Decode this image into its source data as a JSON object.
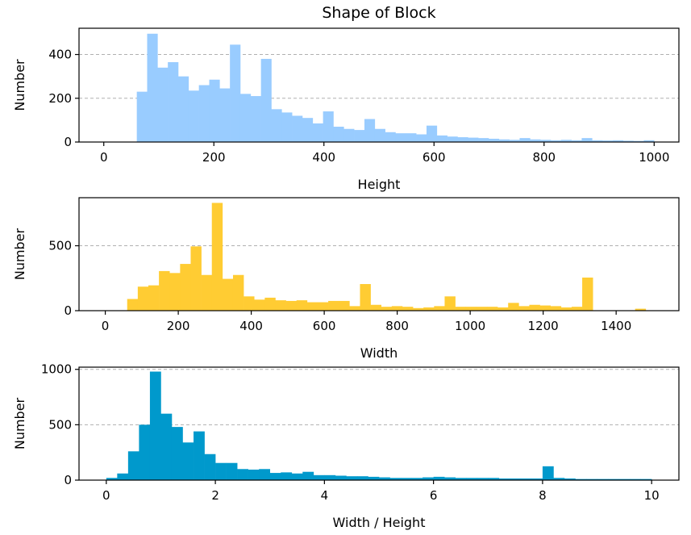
{
  "title": "Shape of Block",
  "chart_data": [
    {
      "type": "bar",
      "xlabel": "Height",
      "ylabel": "Number",
      "color": "#99ccff",
      "xlim": [
        -45,
        1045
      ],
      "ylim": [
        0,
        520
      ],
      "xticks": [
        0,
        200,
        400,
        600,
        800,
        1000
      ],
      "yticks": [
        0,
        200,
        400
      ],
      "grid": "y",
      "bin_edges": [
        60,
        78.8,
        97.6,
        116.4,
        135.2,
        154,
        172.8,
        191.6,
        210.4,
        229.2,
        248,
        266.8,
        285.6,
        304.4,
        323.2,
        342,
        360.8,
        379.6,
        398.4,
        417.2,
        436,
        454.8,
        473.6,
        492.4,
        511.2,
        530,
        548.8,
        567.6,
        586.4,
        605.2,
        624,
        642.8,
        661.6,
        680.4,
        699.2,
        718,
        736.8,
        755.6,
        774.4,
        793.2,
        812,
        830.8,
        849.6,
        868.4,
        887.2,
        906,
        924.8,
        943.6,
        962.4,
        981.2,
        1000
      ],
      "values": [
        230,
        495,
        340,
        365,
        300,
        235,
        260,
        285,
        245,
        445,
        220,
        210,
        380,
        150,
        135,
        120,
        110,
        85,
        140,
        70,
        60,
        55,
        105,
        60,
        45,
        40,
        40,
        35,
        75,
        30,
        25,
        22,
        20,
        18,
        15,
        12,
        10,
        18,
        12,
        10,
        8,
        10,
        8,
        18,
        8,
        7,
        8,
        6,
        5,
        8
      ]
    },
    {
      "type": "bar",
      "xlabel": "Width",
      "ylabel": "Number",
      "color": "#ffcc33",
      "xlim": [
        -72,
        1572
      ],
      "ylim": [
        0,
        870
      ],
      "xticks": [
        0,
        200,
        400,
        600,
        800,
        1000,
        1200,
        1400
      ],
      "yticks": [
        0,
        500
      ],
      "grid": "y",
      "bin_edges": [
        60,
        89,
        118,
        147,
        176,
        205,
        234,
        263,
        292,
        321,
        350,
        379,
        408,
        437,
        466,
        495,
        524,
        553,
        582,
        611,
        640,
        669,
        698,
        727,
        756,
        785,
        814,
        843,
        872,
        901,
        930,
        959,
        988,
        1017,
        1046,
        1075,
        1104,
        1133,
        1162,
        1191,
        1220,
        1249,
        1278,
        1307,
        1336,
        1365,
        1394,
        1423,
        1452,
        1481,
        1510
      ],
      "values": [
        90,
        185,
        195,
        305,
        290,
        360,
        495,
        275,
        830,
        245,
        275,
        110,
        85,
        100,
        80,
        75,
        80,
        65,
        65,
        75,
        75,
        35,
        205,
        45,
        30,
        35,
        30,
        20,
        25,
        35,
        110,
        30,
        30,
        30,
        30,
        25,
        60,
        35,
        45,
        40,
        35,
        25,
        30,
        255,
        0,
        0,
        0,
        0,
        15,
        0
      ]
    },
    {
      "type": "bar",
      "xlabel": "Width / Height",
      "ylabel": "Number",
      "color": "#0099cc",
      "xlim": [
        -0.5,
        10.5
      ],
      "ylim": [
        0,
        1020
      ],
      "xticks": [
        0,
        2,
        4,
        6,
        8,
        10
      ],
      "yticks": [
        0,
        500,
        1000
      ],
      "grid": "y",
      "bin_edges": [
        0,
        0.2,
        0.4,
        0.6,
        0.8,
        1.0,
        1.2,
        1.4,
        1.6,
        1.8,
        2.0,
        2.2,
        2.4,
        2.6,
        2.8,
        3.0,
        3.2,
        3.4,
        3.6,
        3.8,
        4.0,
        4.2,
        4.4,
        4.6,
        4.8,
        5.0,
        5.2,
        5.4,
        5.6,
        5.8,
        6.0,
        6.2,
        6.4,
        6.6,
        6.8,
        7.0,
        7.2,
        7.4,
        7.6,
        7.8,
        8.0,
        8.2,
        8.4,
        8.6,
        8.8,
        9.0,
        9.2,
        9.4,
        9.6,
        9.8,
        10.0
      ],
      "values": [
        20,
        60,
        260,
        500,
        980,
        600,
        480,
        340,
        440,
        235,
        155,
        155,
        100,
        95,
        100,
        65,
        70,
        60,
        75,
        45,
        45,
        40,
        35,
        35,
        30,
        25,
        20,
        20,
        20,
        25,
        30,
        25,
        20,
        20,
        20,
        20,
        15,
        15,
        15,
        15,
        125,
        20,
        15,
        10,
        10,
        10,
        10,
        10,
        10,
        10
      ]
    }
  ]
}
